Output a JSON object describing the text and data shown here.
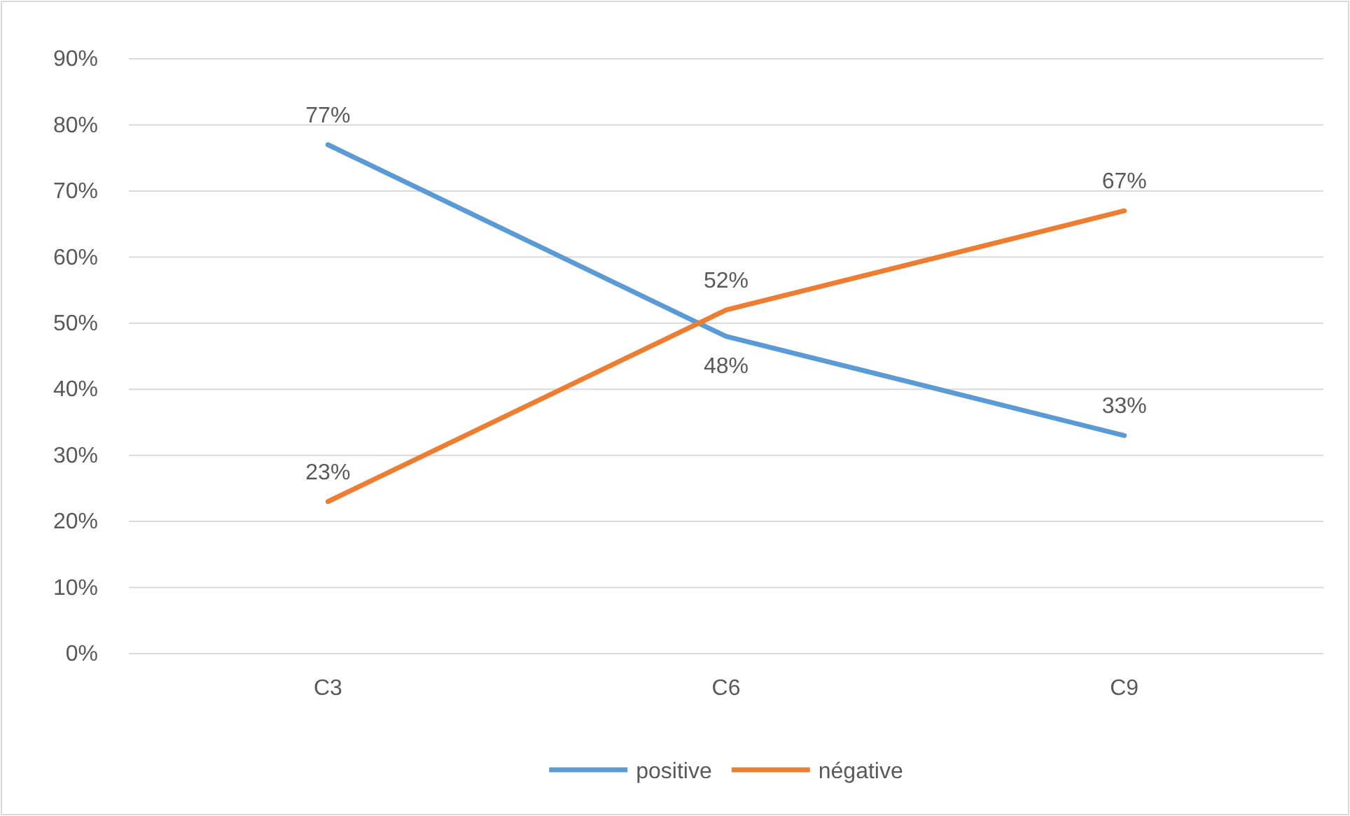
{
  "chart_data": {
    "type": "line",
    "categories": [
      "C3",
      "C6",
      "C9"
    ],
    "series": [
      {
        "name": "positive",
        "color": "#5b9bd5",
        "values": [
          77,
          48,
          33
        ],
        "value_labels": [
          "77%",
          "48%",
          "33%"
        ]
      },
      {
        "name": "négative",
        "color": "#ed7d31",
        "values": [
          23,
          52,
          67
        ],
        "value_labels": [
          "23%",
          "52%",
          "67%"
        ]
      }
    ],
    "ylim": [
      0,
      90
    ],
    "yticks": [
      {
        "value": 0,
        "label": "0%"
      },
      {
        "value": 10,
        "label": "10%"
      },
      {
        "value": 20,
        "label": "20%"
      },
      {
        "value": 30,
        "label": "30%"
      },
      {
        "value": 40,
        "label": "40%"
      },
      {
        "value": 50,
        "label": "50%"
      },
      {
        "value": 60,
        "label": "60%"
      },
      {
        "value": 70,
        "label": "70%"
      },
      {
        "value": 80,
        "label": "80%"
      },
      {
        "value": 90,
        "label": "90%"
      }
    ],
    "grid": "y",
    "legend": "bottom",
    "marker": "none",
    "line_style": "solid"
  }
}
